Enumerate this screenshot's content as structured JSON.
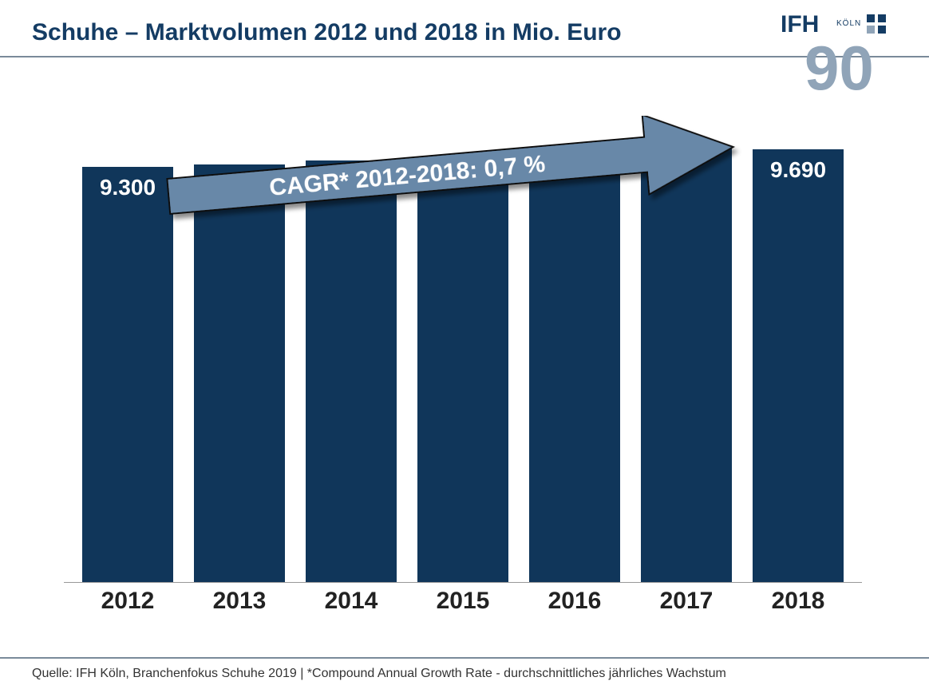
{
  "title": "Schuhe – Marktvolumen 2012 und 2018 in Mio. Euro",
  "logo": {
    "text_main": "IFH",
    "text_sub": "KÖLN",
    "number": "90",
    "color_primary": "#143c64",
    "color_secondary": "#90a4b8"
  },
  "chart": {
    "type": "bar",
    "categories": [
      "2012",
      "2013",
      "2014",
      "2015",
      "2016",
      "2017",
      "2018"
    ],
    "values": [
      9300,
      9350,
      9450,
      9520,
      9580,
      9720,
      9690
    ],
    "value_labels": [
      "9.300",
      "",
      "",
      "",
      "",
      "",
      "9.690"
    ],
    "bar_color": "#10365a",
    "bar_label_color": "#ffffff",
    "bar_label_fontsize": 28,
    "x_label_fontsize": 30,
    "x_label_color": "#222222",
    "background_color": "#ffffff",
    "axis_line_color": "#999999",
    "ylim": [
      0,
      10000
    ],
    "bar_width_pct": 82
  },
  "arrow": {
    "text": "CAGR* 2012-2018: 0,7 %",
    "fill_color": "#6888a8",
    "stroke_color": "#111111",
    "text_color": "#ffffff",
    "text_fontsize": 30,
    "rotation_deg": -5,
    "shadow": true
  },
  "footer": "Quelle: IFH Köln, Branchenfokus Schuhe 2019 | *Compound Annual Growth Rate - durchschnittliches jährliches Wachstum"
}
